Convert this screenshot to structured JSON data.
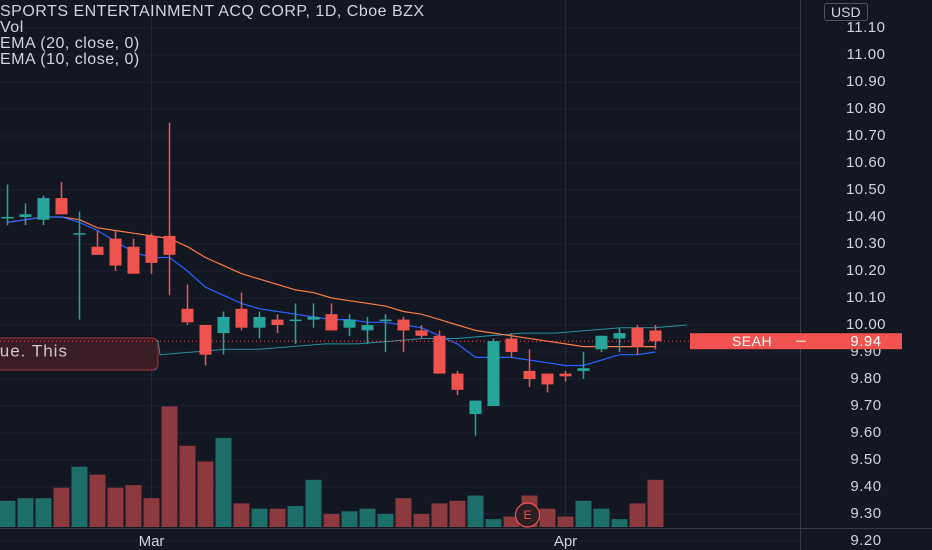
{
  "header": {
    "title": "SPORTS ENTERTAINMENT ACQ CORP, 1D, Cboe BZX",
    "indicators": [
      "Vol",
      "EMA (20, close, 0)",
      "EMA (10, close, 0)"
    ],
    "currency": "USD"
  },
  "overlay_text": "lue. This",
  "price_tag": {
    "symbol": "SEAH",
    "price": "9.94"
  },
  "earnings_marker": "E",
  "colors": {
    "background": "#131722",
    "up": "#26a69a",
    "down": "#ef5350",
    "ema20": "#f57c4a",
    "ema10": "#2962ff",
    "price_tag": "#f05350"
  },
  "chart_data": {
    "type": "candlestick",
    "y_ticks": [
      "9.20",
      "9.30",
      "9.40",
      "9.50",
      "9.60",
      "9.70",
      "9.80",
      "9.90",
      "10.00",
      "10.10",
      "10.20",
      "10.30",
      "10.40",
      "10.50",
      "10.60",
      "10.70",
      "10.80",
      "10.90",
      "11.00",
      "11.10"
    ],
    "x_ticks": [
      {
        "label": "Mar",
        "index": 8
      },
      {
        "label": "Apr",
        "index": 31
      }
    ],
    "ylim": [
      9.16,
      11.12
    ],
    "last_price": 9.94,
    "candles": [
      {
        "o": 10.4,
        "h": 10.52,
        "l": 10.37,
        "c": 10.4
      },
      {
        "o": 10.4,
        "h": 10.45,
        "l": 10.37,
        "c": 10.41
      },
      {
        "o": 10.39,
        "h": 10.48,
        "l": 10.37,
        "c": 10.47
      },
      {
        "o": 10.47,
        "h": 10.53,
        "l": 10.41,
        "c": 10.41
      },
      {
        "o": 10.34,
        "h": 10.42,
        "l": 10.02,
        "c": 10.34
      },
      {
        "o": 10.29,
        "h": 10.35,
        "l": 10.26,
        "c": 10.26
      },
      {
        "o": 10.32,
        "h": 10.35,
        "l": 10.2,
        "c": 10.22
      },
      {
        "o": 10.29,
        "h": 10.32,
        "l": 10.19,
        "c": 10.19
      },
      {
        "o": 10.33,
        "h": 10.34,
        "l": 10.19,
        "c": 10.23
      },
      {
        "o": 10.33,
        "h": 10.75,
        "l": 10.11,
        "c": 10.26
      },
      {
        "o": 10.06,
        "h": 10.15,
        "l": 10.0,
        "c": 10.01
      },
      {
        "o": 10.0,
        "h": 10.0,
        "l": 9.85,
        "c": 9.89
      },
      {
        "o": 9.97,
        "h": 10.05,
        "l": 9.89,
        "c": 10.03
      },
      {
        "o": 10.06,
        "h": 10.12,
        "l": 9.98,
        "c": 9.99
      },
      {
        "o": 9.99,
        "h": 10.05,
        "l": 9.95,
        "c": 10.03
      },
      {
        "o": 10.02,
        "h": 10.04,
        "l": 9.97,
        "c": 10.0
      },
      {
        "o": 10.02,
        "h": 10.08,
        "l": 9.93,
        "c": 10.02
      },
      {
        "o": 10.02,
        "h": 10.08,
        "l": 9.99,
        "c": 10.03
      },
      {
        "o": 10.04,
        "h": 10.08,
        "l": 9.98,
        "c": 9.98
      },
      {
        "o": 9.99,
        "h": 10.04,
        "l": 9.96,
        "c": 10.02
      },
      {
        "o": 9.98,
        "h": 10.03,
        "l": 9.93,
        "c": 10.0
      },
      {
        "o": 10.02,
        "h": 10.04,
        "l": 9.9,
        "c": 10.02
      },
      {
        "o": 10.02,
        "h": 10.03,
        "l": 9.9,
        "c": 9.98
      },
      {
        "o": 9.98,
        "h": 10.0,
        "l": 9.95,
        "c": 9.96
      },
      {
        "o": 9.96,
        "h": 9.98,
        "l": 9.82,
        "c": 9.82
      },
      {
        "o": 9.82,
        "h": 9.83,
        "l": 9.74,
        "c": 9.76
      },
      {
        "o": 9.67,
        "h": 9.72,
        "l": 9.59,
        "c": 9.72
      },
      {
        "o": 9.7,
        "h": 9.95,
        "l": 9.7,
        "c": 9.94
      },
      {
        "o": 9.95,
        "h": 9.97,
        "l": 9.88,
        "c": 9.9
      },
      {
        "o": 9.83,
        "h": 9.91,
        "l": 9.77,
        "c": 9.8
      },
      {
        "o": 9.82,
        "h": 9.82,
        "l": 9.75,
        "c": 9.78
      },
      {
        "o": 9.82,
        "h": 9.83,
        "l": 9.79,
        "c": 9.81
      },
      {
        "o": 9.83,
        "h": 9.9,
        "l": 9.8,
        "c": 9.84
      },
      {
        "o": 9.91,
        "h": 9.96,
        "l": 9.9,
        "c": 9.96
      },
      {
        "o": 9.95,
        "h": 9.99,
        "l": 9.9,
        "c": 9.97
      },
      {
        "o": 9.99,
        "h": 10.0,
        "l": 9.89,
        "c": 9.92
      },
      {
        "o": 9.98,
        "h": 10.0,
        "l": 9.91,
        "c": 9.94
      }
    ],
    "ema20": [
      10.38,
      10.39,
      10.4,
      10.4,
      10.39,
      10.36,
      10.35,
      10.34,
      10.33,
      10.32,
      10.29,
      10.25,
      10.22,
      10.19,
      10.17,
      10.15,
      10.13,
      10.12,
      10.1,
      10.09,
      10.08,
      10.07,
      10.05,
      10.04,
      10.02,
      10.0,
      9.98,
      9.97,
      9.96,
      9.95,
      9.94,
      9.93,
      9.92,
      9.92,
      9.92,
      9.92,
      9.92
    ],
    "ema10": [
      10.38,
      10.39,
      10.4,
      10.4,
      10.38,
      10.35,
      10.31,
      10.27,
      10.25,
      10.25,
      10.2,
      10.14,
      10.11,
      10.08,
      10.06,
      10.05,
      10.04,
      10.03,
      10.02,
      10.02,
      10.01,
      10.01,
      10.0,
      9.99,
      9.96,
      9.93,
      9.88,
      9.88,
      9.88,
      9.87,
      9.86,
      9.85,
      9.85,
      9.87,
      9.89,
      9.89,
      9.9
    ],
    "volume": [
      1.0,
      1.1,
      1.1,
      1.5,
      2.3,
      2.0,
      1.5,
      1.6,
      1.1,
      4.6,
      3.1,
      2.5,
      3.4,
      0.9,
      0.7,
      0.7,
      0.8,
      1.8,
      0.5,
      0.6,
      0.7,
      0.5,
      1.1,
      0.5,
      0.9,
      1.0,
      1.2,
      0.3,
      0.4,
      1.2,
      0.7,
      0.4,
      1.0,
      0.7,
      0.3,
      0.9,
      1.8
    ],
    "vol_max": 5.0,
    "band_upper": [
      9.89,
      9.9,
      9.91,
      9.91,
      9.92,
      9.93,
      9.93,
      9.94,
      9.95,
      9.95,
      9.96,
      9.97,
      9.97,
      9.98,
      9.99,
      9.99,
      10.0
    ]
  }
}
